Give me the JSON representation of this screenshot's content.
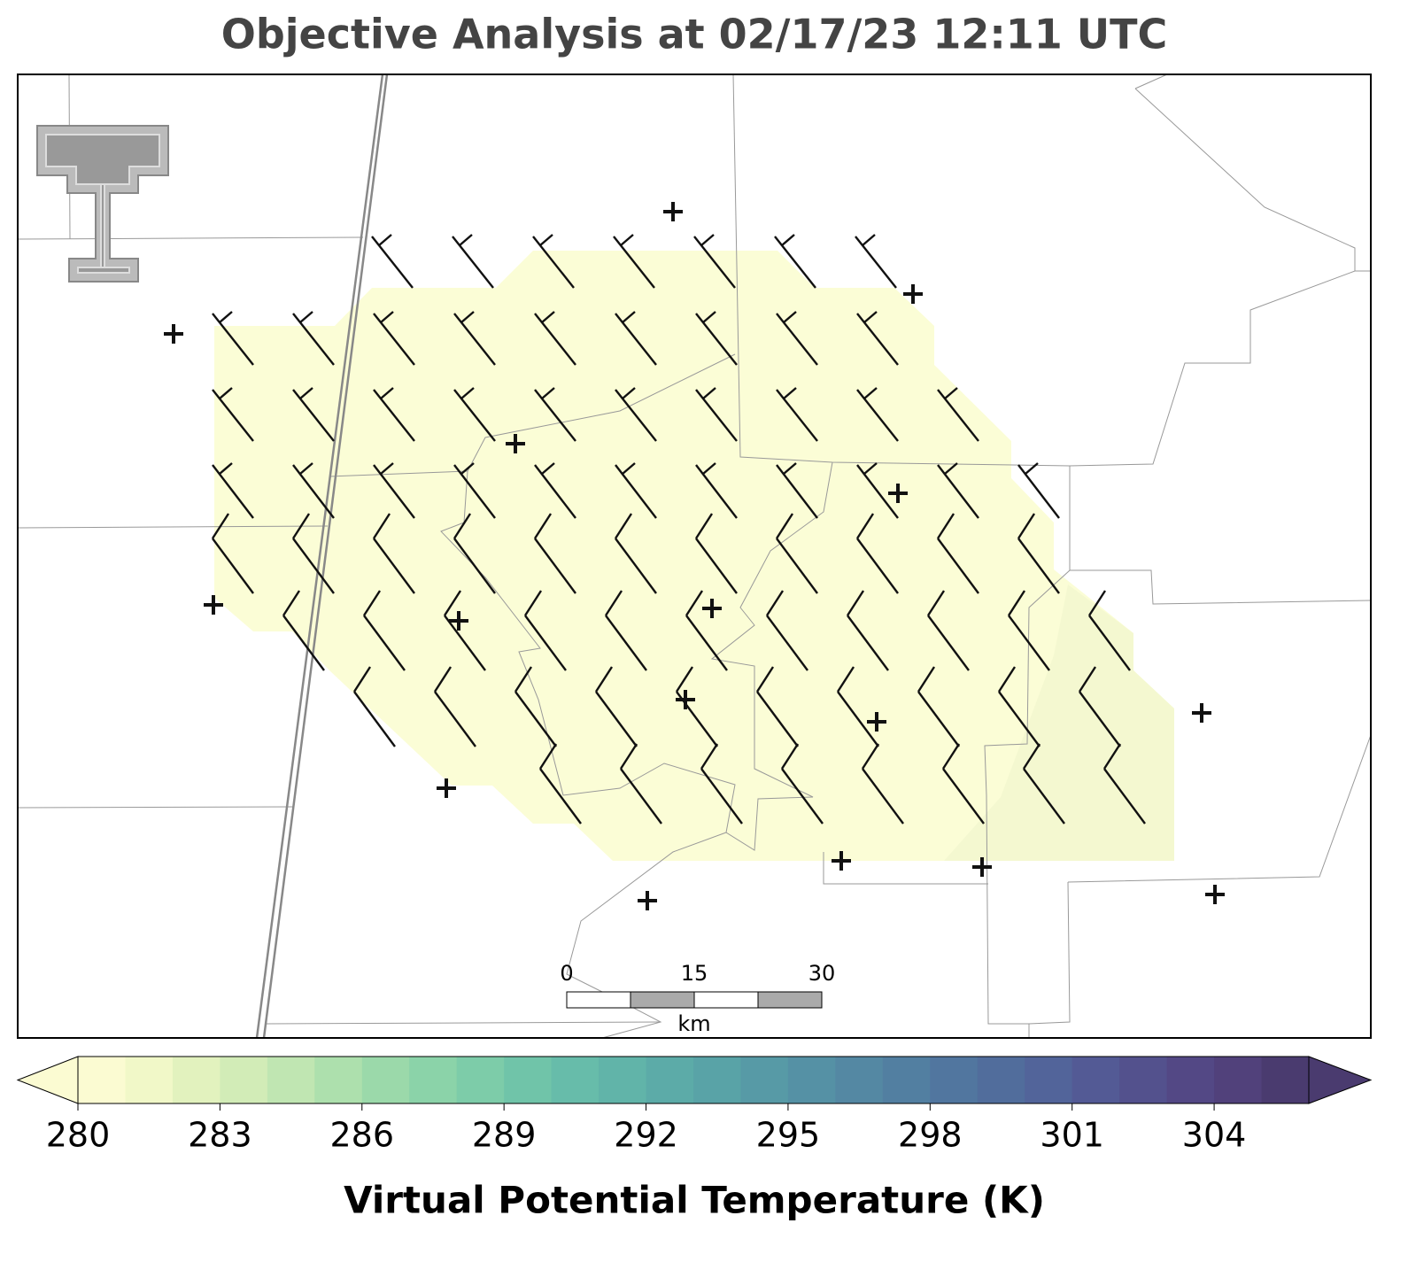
{
  "title": "Objective Analysis at 02/17/23 12:11 UTC",
  "scale_bar": {
    "ticks": [
      0,
      15,
      30
    ],
    "unit": "km"
  },
  "chart_data": {
    "type": "colorbar",
    "label": "Virtual Potential Temperature (K)",
    "xlim": [
      280,
      306
    ],
    "xticks": [
      280,
      283,
      286,
      289,
      292,
      295,
      298,
      301,
      304
    ],
    "colors": [
      "#fbfbd2",
      "#f1f8c8",
      "#e2f2be",
      "#d2ecb7",
      "#c0e6b2",
      "#ade0ad",
      "#9bd9aa",
      "#8bd3a9",
      "#7dcca9",
      "#70c4a9",
      "#67bcaa",
      "#61b4a9",
      "#5caba8",
      "#59a3a7",
      "#579aa6",
      "#5591a5",
      "#5488a3",
      "#527fa1",
      "#51769f",
      "#516d9c",
      "#52649a",
      "#535a95",
      "#53518d",
      "#534885",
      "#51417b",
      "#4a3b6f"
    ]
  }
}
